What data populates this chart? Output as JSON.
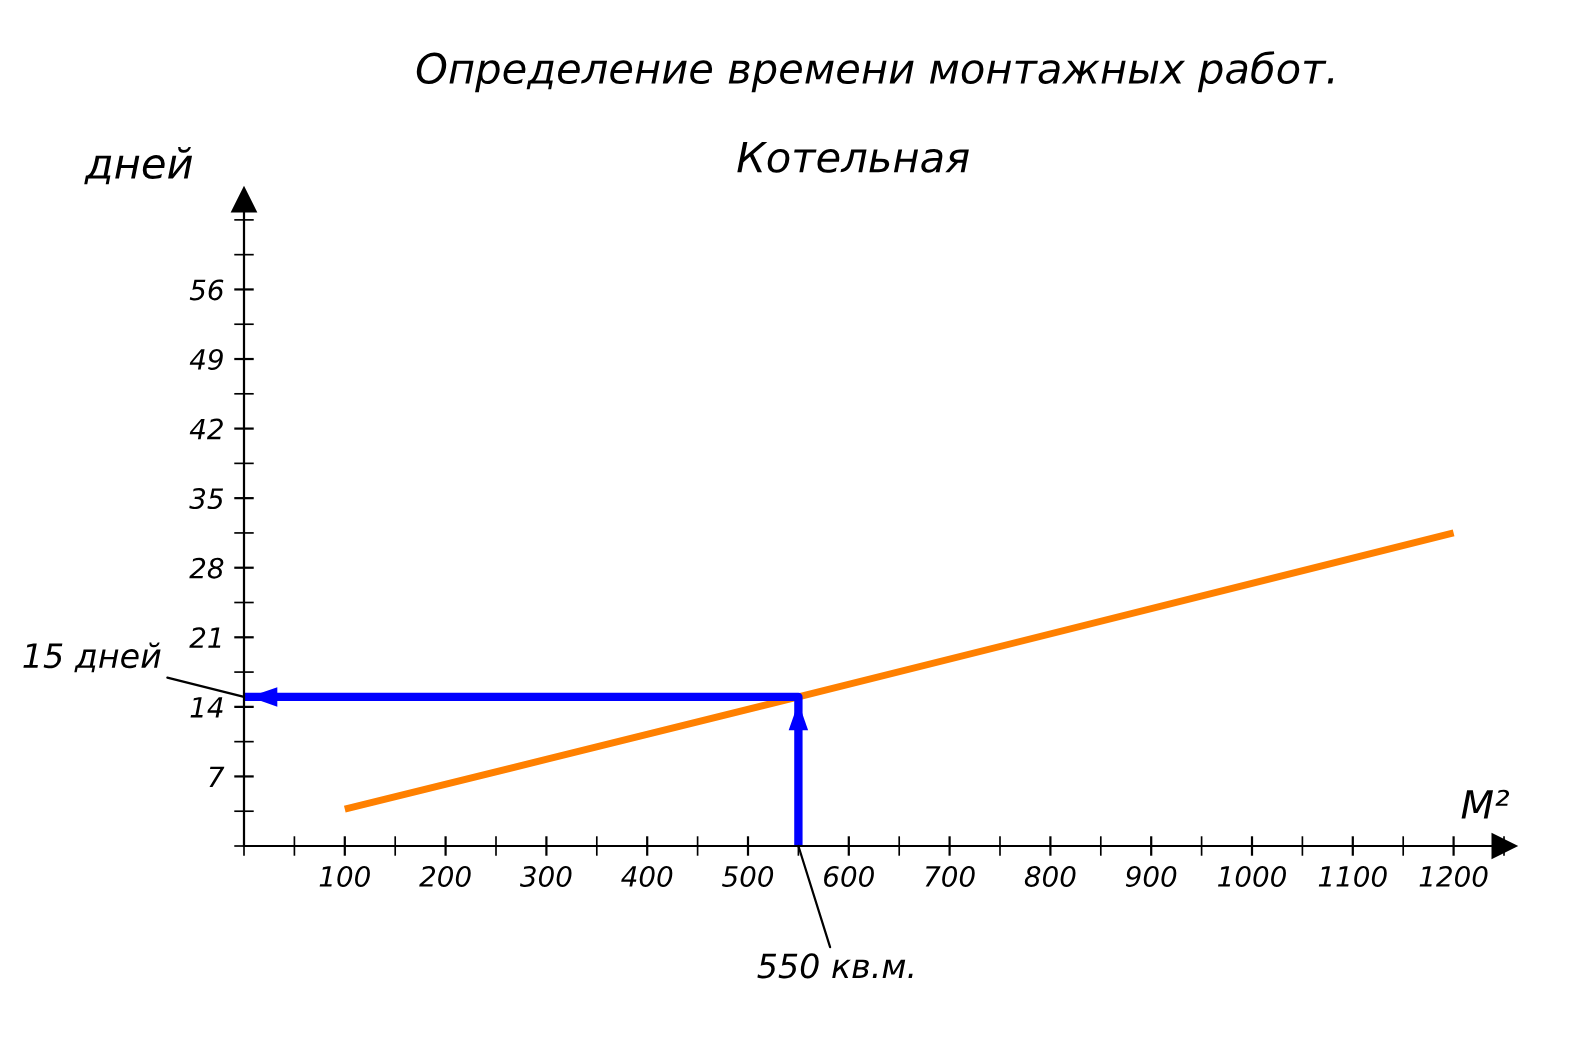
{
  "chart_data": {
    "type": "line",
    "title": "Определение времени монтажных работ.",
    "subtitle": "Котельная",
    "xlabel": "М²",
    "ylabel": "дней",
    "series": [
      {
        "color": "#ff8000",
        "x": [
          100,
          550,
          1200
        ],
        "values": [
          3.7,
          15,
          31.5
        ]
      },
      {
        "color": "#0000ff",
        "x": [
          550,
          550,
          0
        ],
        "values": [
          0,
          15,
          15
        ]
      }
    ],
    "xlim": [
      0,
      1250
    ],
    "ylim": [
      0,
      65
    ],
    "xticks": [
      100,
      200,
      300,
      400,
      500,
      600,
      700,
      800,
      900,
      1000,
      1100,
      1200
    ],
    "yticks": [
      7,
      14,
      21,
      28,
      35,
      42,
      49,
      56
    ],
    "annotations": [
      {
        "text": "15 дней",
        "x": 0,
        "y": 15
      },
      {
        "text": "550 кв.м.",
        "x": 550,
        "y": 0
      }
    ],
    "grid": false,
    "legend": false,
    "marker": "none",
    "line_style": "solid"
  }
}
